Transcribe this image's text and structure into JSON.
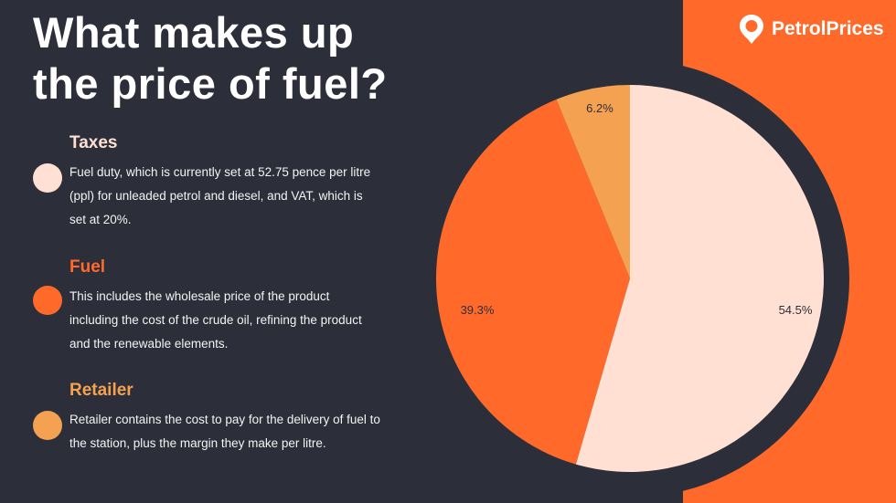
{
  "title": "What makes up\nthe price of fuel?",
  "brand": {
    "name": "PetrolPrices",
    "icon": "map-pin-icon"
  },
  "colors": {
    "background": "#2c2f3a",
    "accent": "#ff6a2b",
    "taxes": "#ffe0d3",
    "fuel": "#ff6a2b",
    "retailer": "#f5a152",
    "text": "#ffffff"
  },
  "legend": [
    {
      "key": "taxes",
      "title": "Taxes",
      "description": "Fuel duty, which is currently set at 52.75 pence per litre (ppl) for unleaded petrol and diesel, and VAT, which is set at 20%.",
      "color": "#ffe0d3",
      "title_color": "#ffe0d3"
    },
    {
      "key": "fuel",
      "title": "Fuel",
      "description": "This includes the wholesale price of the product including the cost of the crude oil, refining the product and the renewable elements.",
      "color": "#ff6a2b",
      "title_color": "#ff6a2b"
    },
    {
      "key": "retailer",
      "title": "Retailer",
      "description": "Retailer contains the cost to pay for the delivery of fuel to the station, plus the margin they make per litre.",
      "color": "#f5a152",
      "title_color": "#f5a152"
    }
  ],
  "chart_data": {
    "type": "pie",
    "title": "What makes up the price of fuel?",
    "categories": [
      "Taxes",
      "Fuel",
      "Retailer"
    ],
    "values": [
      54.5,
      39.3,
      6.2
    ],
    "labels": [
      "54.5%",
      "39.3%",
      "6.2%"
    ],
    "unit": "%",
    "start_angle": "12 o'clock",
    "direction": "clockwise",
    "colors": [
      "#ffe0d3",
      "#ff6a2b",
      "#f5a152"
    ],
    "legend": "left"
  }
}
